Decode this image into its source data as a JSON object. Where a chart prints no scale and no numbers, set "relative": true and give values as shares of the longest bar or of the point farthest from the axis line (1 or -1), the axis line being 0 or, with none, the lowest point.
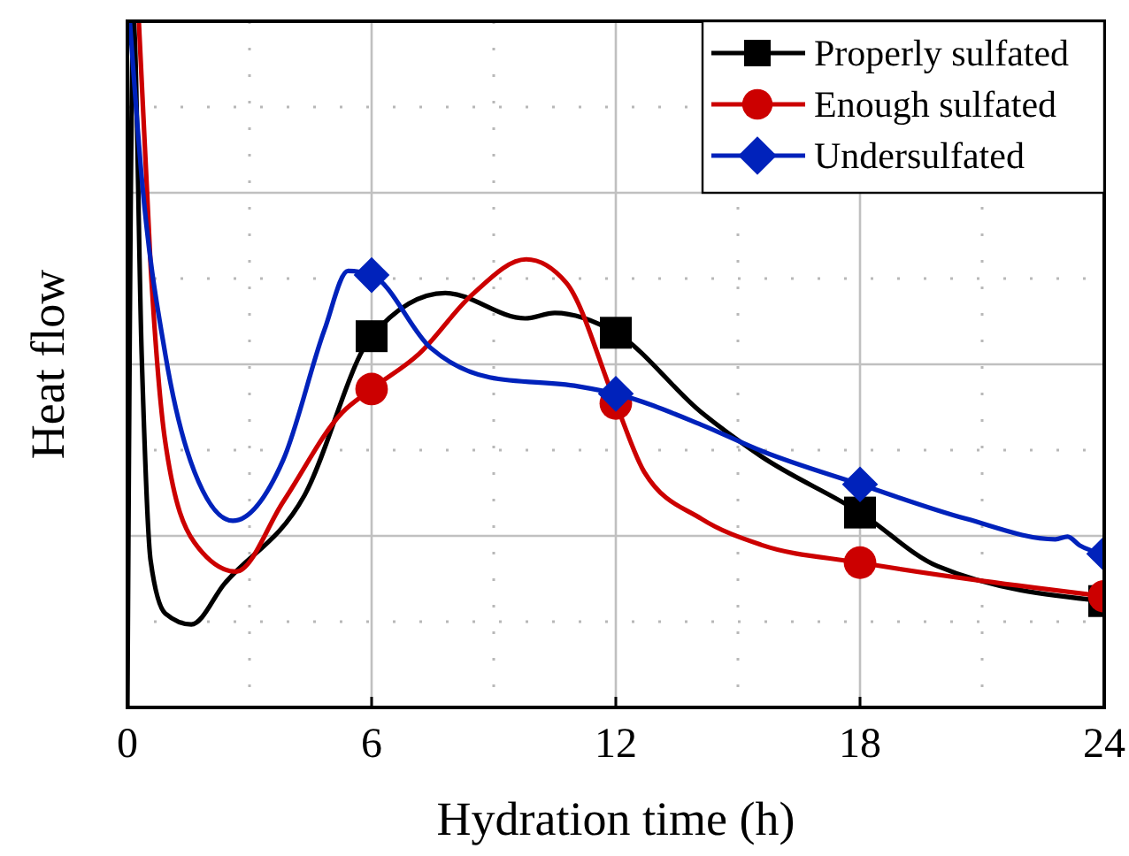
{
  "chart_data": {
    "type": "line",
    "relative": true,
    "xlabel": "Hydration time (h)",
    "ylabel": "Heat flow",
    "xlim": [
      0,
      24
    ],
    "xticks": [
      0,
      6,
      12,
      18,
      24
    ],
    "grid": true,
    "legend": "top right",
    "line_style": "solid",
    "series": [
      {
        "name": "Properly sulfated",
        "color": "#000000",
        "marker": "none",
        "x": [
          0,
          0.15,
          0.35,
          0.57,
          0.93,
          1.57,
          2.38,
          4.35,
          6,
          7.81,
          9.77,
          10.5,
          12,
          14.1,
          15.57,
          18,
          19.9,
          24
        ],
        "values": [
          0,
          1,
          0.515,
          0.214,
          0.137,
          0.121,
          0.18,
          0.309,
          0.541,
          0.604,
          0.567,
          0.575,
          0.546,
          0.43,
          0.366,
          0.284,
          0.206,
          0.155
        ]
      },
      {
        "type": "scatter",
        "color": "#000000",
        "marker": "square",
        "x": [
          6,
          12,
          18,
          24
        ],
        "values": [
          0.541,
          0.546,
          0.284,
          0.155
        ]
      },
      {
        "name": "Enough sulfated",
        "color": "#cc0000",
        "marker": "none",
        "x": [
          0.28,
          0.57,
          0.93,
          1.65,
          2.67,
          3.83,
          5.28,
          6,
          7.16,
          8.46,
          9.8,
          10.78,
          12,
          12.7,
          14.1,
          15.57,
          18,
          24
        ],
        "values": [
          1,
          0.644,
          0.387,
          0.24,
          0.198,
          0.3,
          0.43,
          0.464,
          0.515,
          0.601,
          0.653,
          0.619,
          0.443,
          0.343,
          0.275,
          0.237,
          0.211,
          0.162
        ]
      },
      {
        "type": "scatter",
        "color": "#cc0000",
        "marker": "circle",
        "x": [
          6,
          12,
          18,
          24
        ],
        "values": [
          0.464,
          0.443,
          0.211,
          0.162
        ]
      },
      {
        "name": "Undersulfated",
        "color": "#0022bb",
        "marker": "none",
        "x": [
          0.06,
          0.35,
          0.93,
          1.65,
          2.59,
          3.83,
          4.84,
          5.42,
          6,
          7.45,
          8.9,
          11.07,
          12,
          14.1,
          15.57,
          18,
          20.6,
          22.8,
          23.1,
          23.4,
          24
        ],
        "values": [
          1,
          0.773,
          0.515,
          0.343,
          0.272,
          0.361,
          0.55,
          0.636,
          0.63,
          0.524,
          0.481,
          0.468,
          0.457,
          0.412,
          0.374,
          0.325,
          0.275,
          0.245,
          0.249,
          0.236,
          0.224
        ]
      },
      {
        "type": "scatter",
        "color": "#0022bb",
        "marker": "diamond",
        "x": [
          6,
          12,
          18,
          24
        ],
        "values": [
          0.63,
          0.457,
          0.325,
          0.224
        ]
      }
    ]
  }
}
